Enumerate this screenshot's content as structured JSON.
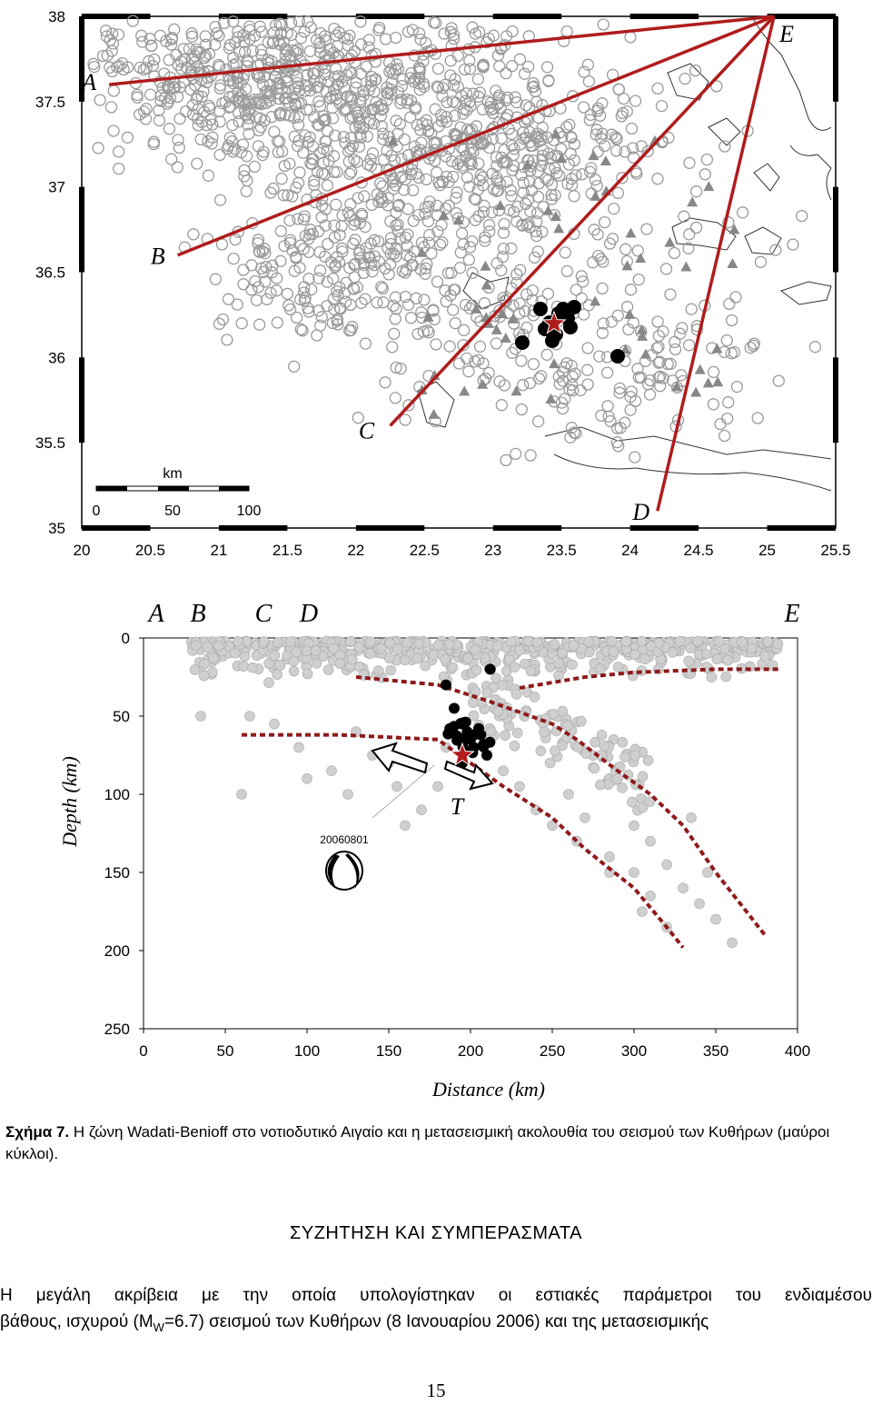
{
  "map": {
    "profile_labels": [
      "A",
      "B",
      "C",
      "D",
      "E"
    ],
    "y_ticks": [
      "38",
      "37.5",
      "37",
      "36.5",
      "36",
      "35.5",
      "35"
    ],
    "x_ticks": [
      "20",
      "20.5",
      "21",
      "21.5",
      "22",
      "22.5",
      "23",
      "23.5",
      "24",
      "24.5",
      "25",
      "25.5"
    ],
    "scale_bar": {
      "unit": "km",
      "labels": [
        "0",
        "50",
        "100"
      ]
    },
    "profile_color": "#b01c1c",
    "point_color": "#9a9a9a"
  },
  "section": {
    "top_labels": [
      "A",
      "B",
      "C",
      "D",
      "E"
    ],
    "y_ticks": [
      "0",
      "50",
      "100",
      "150",
      "200",
      "250"
    ],
    "x_ticks": [
      "0",
      "50",
      "100",
      "150",
      "200",
      "250",
      "300",
      "350",
      "400"
    ],
    "ylabel": "Depth (km)",
    "xlabel": "Distance (km)",
    "event_label": "20060801",
    "axis_label_T": "T",
    "slab_color": "#8e1a1a"
  },
  "chart_data": {
    "type": "scatter",
    "title": "",
    "xlabel": "Distance (km)",
    "ylabel": "Depth (km)",
    "xlim": [
      0,
      400
    ],
    "ylim": [
      250,
      0
    ],
    "series": [
      {
        "name": "",
        "x": [
          20,
          40,
          60,
          75,
          90,
          100,
          110,
          125,
          130,
          150,
          165,
          170,
          180,
          195,
          205,
          210,
          220,
          230,
          240,
          250,
          255,
          265,
          270,
          280,
          290,
          300,
          310,
          320,
          330,
          340,
          350,
          360,
          370,
          380,
          390
        ],
        "y": [
          10,
          20,
          10,
          25,
          15,
          8,
          20,
          12,
          30,
          15,
          10,
          25,
          18,
          12,
          30,
          10,
          20,
          12,
          25,
          15,
          10,
          20,
          12,
          18,
          10,
          25,
          15,
          12,
          20,
          10,
          18,
          12,
          10,
          15,
          12
        ]
      },
      {
        "name": "",
        "x": [
          35,
          60,
          65,
          80,
          95,
          100,
          115,
          125,
          130,
          140,
          150,
          155,
          160,
          170,
          180,
          185,
          210,
          220,
          230,
          240,
          245,
          250,
          260,
          270,
          280,
          285,
          290,
          300,
          300,
          305,
          310,
          320,
          330,
          340,
          345,
          350,
          360,
          265,
          285,
          310,
          320,
          335
        ],
        "y": [
          50,
          100,
          50,
          55,
          70,
          90,
          85,
          100,
          60,
          75,
          80,
          95,
          120,
          110,
          95,
          70,
          65,
          85,
          95,
          110,
          60,
          120,
          100,
          115,
          75,
          140,
          90,
          150,
          120,
          175,
          130,
          145,
          160,
          170,
          150,
          180,
          195,
          130,
          150,
          165,
          185,
          115
        ]
      },
      {
        "name": "",
        "x": [
          185,
          190,
          195,
          198,
          200,
          202,
          205,
          208,
          210,
          195,
          200,
          212
        ],
        "y": [
          30,
          45,
          55,
          60,
          65,
          70,
          58,
          68,
          75,
          80,
          62,
          20
        ]
      }
    ],
    "mainshock": {
      "distance": 195,
      "depth": 75
    },
    "slab_boundaries": [
      {
        "x": [
          130,
          180,
          210,
          250,
          265,
          290,
          310,
          330,
          350,
          380
        ],
        "y": [
          25,
          30,
          40,
          55,
          65,
          85,
          100,
          120,
          150,
          190
        ]
      },
      {
        "x": [
          60,
          120,
          180,
          200,
          220,
          250,
          270,
          300,
          320,
          330
        ],
        "y": [
          62,
          62,
          65,
          80,
          95,
          115,
          135,
          160,
          185,
          198
        ]
      },
      {
        "x": [
          230,
          270,
          300,
          350,
          390
        ],
        "y": [
          32,
          25,
          22,
          20,
          20
        ]
      }
    ],
    "map_profiles": {
      "A": {
        "lon": 20.2,
        "lat": 37.6
      },
      "B": {
        "lon": 20.7,
        "lat": 36.6
      },
      "C": {
        "lon": 22.25,
        "lat": 35.6
      },
      "D": {
        "lon": 24.2,
        "lat": 35.1
      },
      "E": {
        "lon": 25.05,
        "lat": 38.0
      }
    },
    "map_xlim": [
      20,
      25.5
    ],
    "map_ylim": [
      35,
      38
    ]
  },
  "caption": {
    "label": "Σχήμα 7.",
    "text": " Η ζώνη Wadati-Benioff στο νοτιοδυτικό Αιγαίο και η μετασεισμική ακολουθία του σεισμού των Κυθήρων (μαύροι κύκλοι)."
  },
  "section_title": "ΣΥΖΗΤΗΣΗ ΚΑΙ ΣΥΜΠΕΡΑΣΜΑΤΑ",
  "body": {
    "line1_words": [
      "Η",
      "μεγάλη",
      "ακρίβεια",
      "με",
      "την",
      "οποία",
      "υπολογίστηκαν",
      "οι",
      "εστιακές",
      "παράμετροι",
      "του",
      "ενδιαμέσου"
    ],
    "line2_start": "βάθους, ισχυρού (M",
    "line2_sub": "W",
    "line2_end": "=6.7) σεισμού των Κυθήρων (8 Ιανουαρίου 2006) και της μετασεισμικής"
  },
  "page_number": "15"
}
